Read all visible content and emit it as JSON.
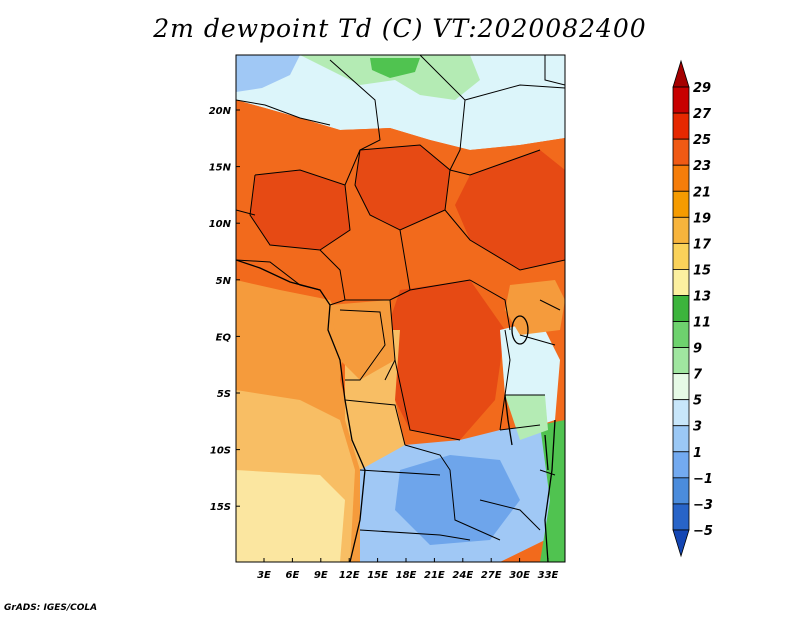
{
  "title": "2m dewpoint Td (C) VT:2020082400",
  "credit": "GrADS: IGES/COLA",
  "map": {
    "lat_labels": [
      "20N",
      "15N",
      "10N",
      "5N",
      "EQ",
      "5S",
      "10S",
      "15S"
    ],
    "lon_labels": [
      "3E",
      "6E",
      "9E",
      "12E",
      "15E",
      "18E",
      "21E",
      "24E",
      "27E",
      "30E",
      "33E"
    ]
  },
  "colorbar": {
    "labels": [
      "29",
      "27",
      "25",
      "23",
      "21",
      "19",
      "17",
      "15",
      "13",
      "11",
      "9",
      "7",
      "5",
      "3",
      "1",
      "−1",
      "−3",
      "−5"
    ],
    "colors": [
      "#a50000",
      "#c80000",
      "#e62800",
      "#f05a14",
      "#f57d0a",
      "#f59b00",
      "#f7b43c",
      "#fad25a",
      "#fcf0a0",
      "#3cb43c",
      "#6ed26e",
      "#a0e6a0",
      "#e6fae6",
      "#c8e6fa",
      "#9bc8f5",
      "#73aaf0",
      "#4b8cdc",
      "#2864c8",
      "#1446b4"
    ]
  },
  "map_colors": {
    "deep_orange": "#e64a14",
    "orange": "#f26a1c",
    "light_orange": "#f59b3c",
    "pale_orange": "#f8be64",
    "cream": "#fbe6a0",
    "light_blue": "#a0c8f5",
    "blue": "#6ea5eb",
    "pale_green": "#b4ebb4",
    "green": "#50c350",
    "pale_cyan": "#dcf5fa",
    "border": "#000000"
  }
}
